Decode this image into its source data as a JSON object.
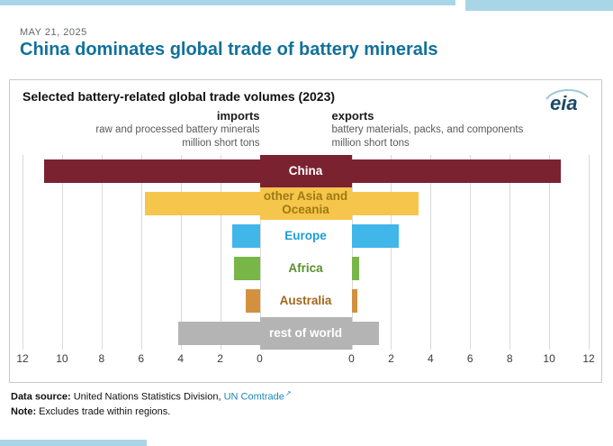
{
  "page": {
    "date": "MAY 21, 2025",
    "title": "China dominates global trade of battery minerals"
  },
  "logo": {
    "text": "eia"
  },
  "chart": {
    "title": "Selected battery-related global trade volumes (2023)",
    "left_header": {
      "label": "imports",
      "sub": "raw and processed battery minerals",
      "unit": "million short tons"
    },
    "right_header": {
      "label": "exports",
      "sub": "battery materials, packs, and components",
      "unit": "million short tons"
    },
    "axis": {
      "max": 12,
      "left_ticks": [
        "12",
        "10",
        "8",
        "6",
        "4",
        "2",
        "0"
      ],
      "right_ticks": [
        "0",
        "2",
        "4",
        "6",
        "8",
        "10",
        "12"
      ]
    },
    "rows": [
      {
        "label": "China",
        "imports": 10.9,
        "exports": 10.6,
        "bar_color": "#7b2231",
        "center_bg": "#7b2231",
        "label_color": "#ffffff"
      },
      {
        "label": "other Asia and Oceania",
        "imports": 5.8,
        "exports": 3.4,
        "bar_color": "#f6c54b",
        "center_bg": "#f6c54b",
        "label_color": "#9d7a12"
      },
      {
        "label": "Europe",
        "imports": 1.4,
        "exports": 2.4,
        "bar_color": "#41b6e8",
        "center_bg": "",
        "label_color": "#1e9cd7"
      },
      {
        "label": "Africa",
        "imports": 1.3,
        "exports": 0.4,
        "bar_color": "#78b648",
        "center_bg": "",
        "label_color": "#5a8f2f"
      },
      {
        "label": "Australia",
        "imports": 0.7,
        "exports": 0.3,
        "bar_color": "#d39140",
        "center_bg": "",
        "label_color": "#a4661d"
      },
      {
        "label": "rest of world",
        "imports": 4.1,
        "exports": 1.4,
        "bar_color": "#b4b4b4",
        "center_bg": "#b4b4b4",
        "label_color": "#ffffff"
      }
    ]
  },
  "chart_data": {
    "type": "bar",
    "subtype": "diverging-butterfly",
    "title": "Selected battery-related global trade volumes (2023)",
    "categories": [
      "China",
      "other Asia and Oceania",
      "Europe",
      "Africa",
      "Australia",
      "rest of world"
    ],
    "series": [
      {
        "name": "imports: raw and processed battery minerals (million short tons)",
        "values": [
          10.9,
          5.8,
          1.4,
          1.3,
          0.7,
          4.1
        ]
      },
      {
        "name": "exports: battery materials, packs, and components (million short tons)",
        "values": [
          10.6,
          3.4,
          2.4,
          0.4,
          0.3,
          1.4
        ]
      }
    ],
    "xlim": [
      0,
      12
    ],
    "tick_step": 2,
    "grid": true,
    "legend_position": "none",
    "colors": {
      "China": "#7b2231",
      "other Asia and Oceania": "#f6c54b",
      "Europe": "#41b6e8",
      "Africa": "#78b648",
      "Australia": "#d39140",
      "rest of world": "#b4b4b4"
    }
  },
  "footer": {
    "source_label": "Data source:",
    "source_text": "United Nations Statistics Division,",
    "source_link": "UN Comtrade",
    "note_label": "Note:",
    "note_text": "Excludes trade within regions."
  },
  "icons": {
    "external_link": "↗"
  },
  "colors": {
    "accent": "#a9d6e6",
    "title": "#11719b",
    "link": "#1d87b8"
  }
}
